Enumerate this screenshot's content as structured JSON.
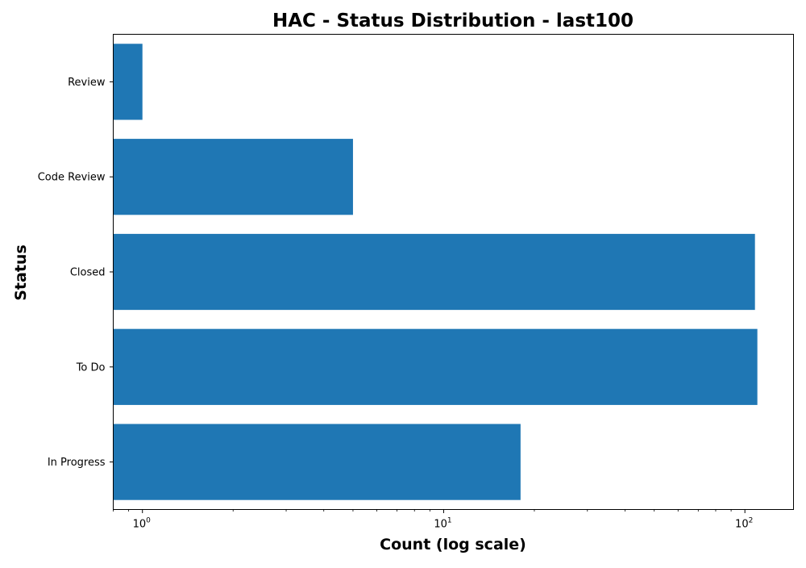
{
  "chart_data": {
    "type": "bar",
    "orientation": "horizontal",
    "title": "HAC - Status Distribution - last100",
    "xlabel": "Count (log scale)",
    "ylabel": "Status",
    "xscale": "log",
    "xlim": [
      0.8,
      145
    ],
    "x_ticks": [
      {
        "value": 1,
        "base": "10",
        "exp": "0"
      },
      {
        "value": 10,
        "base": "10",
        "exp": "1"
      },
      {
        "value": 100,
        "base": "10",
        "exp": "2"
      }
    ],
    "categories": [
      "In Progress",
      "To Do",
      "Closed",
      "Code Review",
      "Review"
    ],
    "values": [
      18,
      110,
      108,
      5,
      1
    ],
    "bar_color": "#1f77b4",
    "grid": false,
    "legend": "none"
  }
}
